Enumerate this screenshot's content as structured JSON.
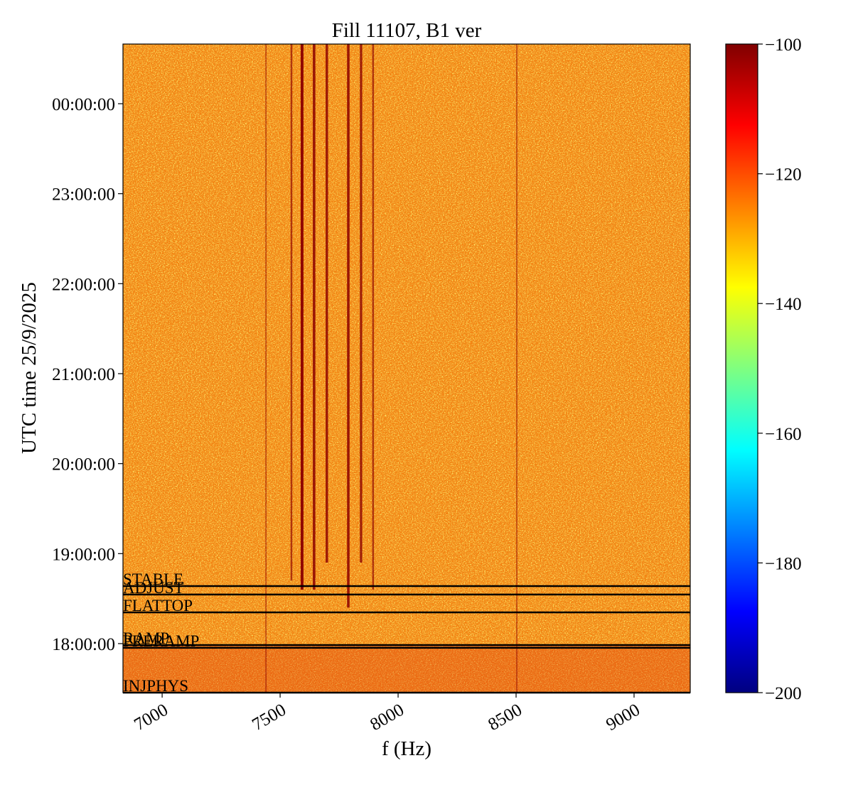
{
  "chart_data": {
    "type": "spectrogram",
    "title": "Fill 11107, B1 ver",
    "x_label": "f (Hz)",
    "y_label": "UTC time 25/9/2025",
    "xlim": [
      6834,
      9238
    ],
    "xticks": [
      7000,
      7500,
      8000,
      8500,
      9000
    ],
    "ylim": [
      17.455,
      24.663
    ],
    "yticks": [
      {
        "value": 18,
        "label": "18:00:00"
      },
      {
        "value": 19,
        "label": "19:00:00"
      },
      {
        "value": 20,
        "label": "20:00:00"
      },
      {
        "value": 21,
        "label": "21:00:00"
      },
      {
        "value": 22,
        "label": "22:00:00"
      },
      {
        "value": 23,
        "label": "23:00:00"
      },
      {
        "value": 24,
        "label": "00:00:00"
      }
    ],
    "colormap": "jet",
    "clim": [
      -200,
      -100
    ],
    "cticks": [
      {
        "value": -100,
        "label": "−100"
      },
      {
        "value": -120,
        "label": "−120"
      },
      {
        "value": -140,
        "label": "−140"
      },
      {
        "value": -160,
        "label": "−160"
      },
      {
        "value": -180,
        "label": "−180"
      },
      {
        "value": -200,
        "label": "−200"
      }
    ],
    "modes": [
      {
        "name": "STABLE",
        "time": 18.639
      },
      {
        "name": "ADJUST",
        "time": 18.545
      },
      {
        "name": "FLATTOP",
        "time": 18.347
      },
      {
        "name": "RAMP",
        "time": 17.984
      },
      {
        "name": "PRERAMP",
        "time": 17.953
      },
      {
        "name": "INJPHYS",
        "time": 17.455
      }
    ],
    "spectral_lines": [
      {
        "f": 7440,
        "t0": 17.455,
        "t1": 24.663,
        "strength": 0.25
      },
      {
        "f": 7548,
        "t0": 18.7,
        "t1": 24.663,
        "strength": 0.5
      },
      {
        "f": 7593,
        "t0": 18.6,
        "t1": 24.663,
        "strength": 1
      },
      {
        "f": 7644,
        "t0": 18.6,
        "t1": 24.663,
        "strength": 0.85
      },
      {
        "f": 7698,
        "t0": 18.9,
        "t1": 24.663,
        "strength": 0.8
      },
      {
        "f": 7789,
        "t0": 18.4,
        "t1": 24.663,
        "strength": 0.85
      },
      {
        "f": 7843,
        "t0": 18.9,
        "t1": 24.663,
        "strength": 0.75
      },
      {
        "f": 7894,
        "t0": 18.6,
        "t1": 24.663,
        "strength": 0.5
      },
      {
        "f": 8503,
        "t0": 17.455,
        "t1": 24.663,
        "strength": 0.25
      }
    ]
  }
}
